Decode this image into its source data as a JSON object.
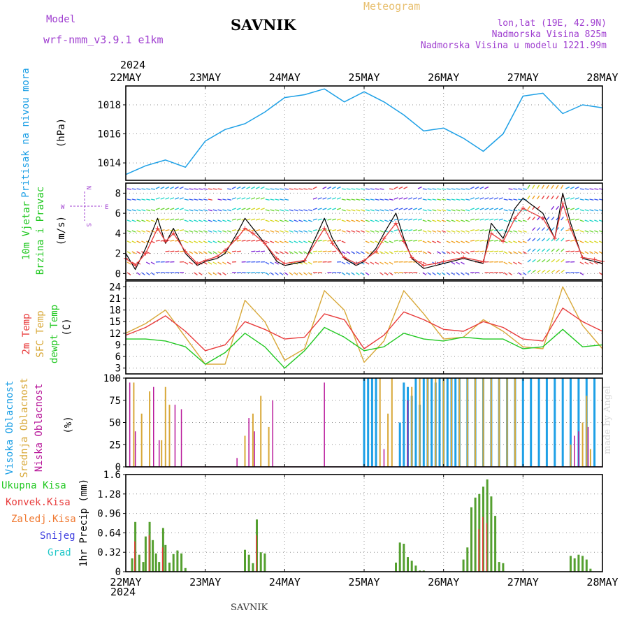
{
  "header": {
    "model_label": "Model",
    "model_value": "wrf-nmm_v3.9.1 e1km",
    "title": "SAVNIK",
    "meteogram": "Meteogram",
    "lonlat": "lon,lat (19E, 42.9N)",
    "altitude": "Nadmorska Visina 825m",
    "model_altitude": "Nadmorska Visina u modelu 1221.99m"
  },
  "footer": {
    "station": "SAVNIK",
    "credit": "made by Angel"
  },
  "colors": {
    "pressure": "#1ea0e6",
    "temp2m": "#e83c3c",
    "sfc_temp": "#d8a838",
    "dewpoint": "#22c822",
    "cloud_high": "#1ea0e6",
    "cloud_mid": "#d8a838",
    "cloud_low": "#b8189a",
    "precip_total": "#55a030",
    "precip_conv": "#e83c3c",
    "compass": "#a040d0",
    "grid": "#909090"
  },
  "time_axis": {
    "year": "2024",
    "labels": [
      "22MAY",
      "23MAY",
      "24MAY",
      "25MAY",
      "26MAY",
      "27MAY",
      "28MAY"
    ]
  },
  "chart_data": [
    {
      "type": "line",
      "panel": "pressure",
      "ylabel_left": "Pritisak na nivou mora",
      "unit": "(hPa)",
      "ylim": [
        1012.8,
        1019.3
      ],
      "yticks": [
        "1014",
        "1016",
        "1018"
      ],
      "series": [
        {
          "name": "Pritisak na nivou mora",
          "x": [
            0,
            0.25,
            0.5,
            0.75,
            1.0,
            1.25,
            1.5,
            1.75,
            2.0,
            2.25,
            2.5,
            2.75,
            3.0,
            3.25,
            3.5,
            3.75,
            4.0,
            4.25,
            4.5,
            4.75,
            5.0,
            5.25,
            5.5,
            5.75,
            6.0
          ],
          "y": [
            1013.2,
            1013.8,
            1014.2,
            1013.7,
            1015.5,
            1016.3,
            1016.7,
            1017.5,
            1018.5,
            1018.7,
            1019.1,
            1018.2,
            1018.9,
            1018.2,
            1017.3,
            1016.2,
            1016.4,
            1015.7,
            1014.8,
            1016.0,
            1018.6,
            1018.8,
            1017.4,
            1018.0,
            1017.8
          ]
        }
      ]
    },
    {
      "type": "line",
      "panel": "wind",
      "ylabel_left": "10m Vjetar",
      "ylabel_left2": "Brzina i Pravac",
      "unit": "(m/s)",
      "compass": {
        "north": "N",
        "south": "S",
        "west": "W",
        "east": "E"
      },
      "ylim": [
        -0.6,
        9.0
      ],
      "yticks": [
        "0",
        "2",
        "4",
        "6",
        "8"
      ],
      "series": [
        {
          "name": "10m Vjetar",
          "x": [
            0,
            0.12,
            0.25,
            0.4,
            0.5,
            0.6,
            0.75,
            0.9,
            1.0,
            1.15,
            1.25,
            1.4,
            1.5,
            1.6,
            1.75,
            1.9,
            2.0,
            2.25,
            2.5,
            2.6,
            2.75,
            2.9,
            3.0,
            3.15,
            3.25,
            3.4,
            3.5,
            3.6,
            3.75,
            3.9,
            4.0,
            4.25,
            4.5,
            4.6,
            4.75,
            4.9,
            5.0,
            5.25,
            5.4,
            5.5,
            5.6,
            5.75,
            5.9,
            6.0
          ],
          "y": [
            2.0,
            0.4,
            2.5,
            5.5,
            3.0,
            4.5,
            2.0,
            0.8,
            1.2,
            1.5,
            2.0,
            4.0,
            5.5,
            4.5,
            3.0,
            1.2,
            0.8,
            1.2,
            5.5,
            3.5,
            1.5,
            0.8,
            1.2,
            2.5,
            4.0,
            6.0,
            3.5,
            1.5,
            0.5,
            0.8,
            1.0,
            1.5,
            1.0,
            5.0,
            3.5,
            6.5,
            7.5,
            6.0,
            3.5,
            8.0,
            5.0,
            1.5,
            1.2,
            1.0
          ]
        },
        {
          "name": "10m Vjetar udari",
          "x": [
            0,
            0.12,
            0.25,
            0.4,
            0.5,
            0.6,
            0.75,
            0.9,
            1.0,
            1.15,
            1.25,
            1.4,
            1.5,
            1.6,
            1.75,
            1.9,
            2.0,
            2.25,
            2.5,
            2.6,
            2.75,
            2.9,
            3.0,
            3.15,
            3.25,
            3.4,
            3.5,
            3.6,
            3.75,
            3.9,
            4.0,
            4.25,
            4.5,
            4.6,
            4.75,
            4.9,
            5.0,
            5.25,
            5.4,
            5.5,
            5.6,
            5.75,
            5.9,
            6.0
          ],
          "y": [
            1.5,
            0.8,
            2.0,
            4.5,
            3.2,
            4.0,
            2.2,
            1.0,
            1.3,
            1.7,
            2.3,
            3.5,
            4.5,
            4.0,
            3.0,
            1.5,
            1.0,
            1.3,
            4.5,
            3.0,
            1.6,
            1.0,
            1.3,
            2.2,
            3.5,
            5.0,
            3.2,
            1.6,
            0.8,
            1.0,
            1.2,
            1.6,
            1.2,
            4.0,
            3.2,
            5.5,
            6.5,
            5.5,
            3.5,
            7.0,
            4.5,
            1.6,
            1.4,
            1.2
          ]
        }
      ]
    },
    {
      "type": "line",
      "panel": "temperature",
      "ylabel_left": "2m Temp",
      "ylabel_left2": "SFC Temp",
      "ylabel_left3": "dewpt Temp",
      "unit": "(C)",
      "ylim": [
        1.5,
        25.5
      ],
      "yticks": [
        "3",
        "6",
        "9",
        "12",
        "15",
        "18",
        "21",
        "24"
      ],
      "series": [
        {
          "name": "2m Temp",
          "x": [
            0,
            0.25,
            0.5,
            0.75,
            1.0,
            1.25,
            1.5,
            1.75,
            2.0,
            2.25,
            2.5,
            2.75,
            3.0,
            3.25,
            3.5,
            3.75,
            4.0,
            4.25,
            4.5,
            4.75,
            5.0,
            5.25,
            5.5,
            5.75,
            6.0
          ],
          "y": [
            11.5,
            13.5,
            16.5,
            12.5,
            7.5,
            9.0,
            15.0,
            13.0,
            10.5,
            11.0,
            17.0,
            15.5,
            8.0,
            11.5,
            17.5,
            15.5,
            13.0,
            12.5,
            15.0,
            13.5,
            10.5,
            10.0,
            18.5,
            15.0,
            12.5
          ]
        },
        {
          "name": "SFC Temp",
          "x": [
            0,
            0.25,
            0.5,
            0.75,
            1.0,
            1.25,
            1.5,
            1.75,
            2.0,
            2.25,
            2.5,
            2.75,
            3.0,
            3.25,
            3.5,
            3.75,
            4.0,
            4.25,
            4.5,
            4.75,
            5.0,
            5.25,
            5.5,
            5.75,
            6.0
          ],
          "y": [
            12.0,
            14.5,
            18.0,
            11.0,
            4.0,
            4.0,
            20.5,
            15.0,
            5.0,
            8.0,
            23.0,
            18.0,
            4.5,
            10.0,
            23.0,
            17.0,
            10.5,
            11.0,
            15.5,
            12.5,
            8.5,
            8.0,
            24.0,
            14.0,
            8.0
          ]
        },
        {
          "name": "dewpt Temp",
          "x": [
            0,
            0.25,
            0.5,
            0.75,
            1.0,
            1.25,
            1.5,
            1.75,
            2.0,
            2.25,
            2.5,
            2.75,
            3.0,
            3.25,
            3.5,
            3.75,
            4.0,
            4.25,
            4.5,
            4.75,
            5.0,
            5.25,
            5.5,
            5.75,
            6.0
          ],
          "y": [
            10.5,
            10.5,
            10.0,
            8.5,
            4.0,
            7.0,
            12.0,
            8.5,
            3.0,
            7.5,
            13.5,
            11.0,
            7.5,
            8.5,
            12.0,
            10.5,
            10.0,
            11.0,
            10.5,
            10.5,
            8.0,
            8.5,
            13.0,
            8.5,
            9.0
          ]
        }
      ]
    },
    {
      "type": "bar",
      "panel": "clouds",
      "ylabel_left": "Visoka Oblacnost",
      "ylabel_left2": "Srednja Oblacnost",
      "ylabel_left3": "Niska Oblacnost",
      "unit": "(%)",
      "ylim": [
        0,
        100
      ],
      "yticks": [
        "0",
        "25",
        "50",
        "75",
        "100"
      ],
      "series": [
        {
          "name": "Visoka Oblacnost",
          "x": [
            3.0,
            3.05,
            3.1,
            3.15,
            3.45,
            3.5,
            3.55,
            3.6,
            3.65,
            3.7,
            3.75,
            3.8,
            3.85,
            3.9,
            3.95,
            4.0,
            4.05,
            4.1,
            4.15,
            4.2,
            4.3,
            4.4,
            4.5,
            4.6,
            4.7,
            4.8,
            4.9,
            5.0,
            5.1,
            5.2,
            5.3,
            5.4,
            5.5,
            5.6,
            5.7,
            5.8,
            5.9
          ],
          "y": [
            100,
            100,
            100,
            100,
            50,
            95,
            90,
            80,
            100,
            70,
            100,
            100,
            100,
            95,
            100,
            100,
            100,
            100,
            100,
            100,
            100,
            100,
            100,
            100,
            100,
            100,
            100,
            100,
            100,
            100,
            100,
            100,
            100,
            100,
            100,
            100,
            100
          ]
        },
        {
          "name": "Srednja Oblacnost",
          "x": [
            0.1,
            0.2,
            0.3,
            0.45,
            0.5,
            0.55,
            1.5,
            1.6,
            1.7,
            1.8,
            3.2,
            3.3,
            3.35,
            3.6,
            3.7,
            3.8,
            3.9,
            4.0,
            4.1,
            4.2,
            4.3,
            4.4,
            4.5,
            4.6,
            4.7,
            4.8,
            4.9,
            5.6,
            5.75,
            5.8,
            5.85
          ],
          "y": [
            95,
            60,
            85,
            30,
            90,
            70,
            35,
            60,
            80,
            45,
            100,
            60,
            100,
            90,
            100,
            100,
            100,
            100,
            100,
            100,
            100,
            100,
            100,
            100,
            100,
            100,
            100,
            25,
            50,
            80,
            20
          ]
        },
        {
          "name": "Niska Oblacnost",
          "x": [
            0.05,
            0.12,
            0.35,
            0.42,
            0.62,
            0.7,
            1.4,
            1.55,
            1.62,
            1.85,
            2.5,
            3.25,
            3.55,
            5.65,
            5.7,
            5.82
          ],
          "y": [
            95,
            40,
            90,
            30,
            70,
            65,
            10,
            55,
            40,
            75,
            95,
            20,
            75,
            35,
            40,
            45
          ]
        }
      ]
    },
    {
      "type": "bar",
      "panel": "precip",
      "ylabel_left": "1hr Precip",
      "unit": "(mm)",
      "legend": [
        "Ukupna Kisa",
        "Konvek.Kisa",
        "Zaledj.Kisa",
        "Snijeg",
        "Grad"
      ],
      "ylim": [
        0,
        1.6
      ],
      "yticks": [
        "0",
        "0.32",
        "0.64",
        "0.96",
        "1.28",
        "1.6"
      ],
      "series": [
        {
          "name": "Ukupna Kisa",
          "x": [
            0.08,
            0.12,
            0.17,
            0.22,
            0.25,
            0.3,
            0.34,
            0.38,
            0.42,
            0.47,
            0.5,
            0.55,
            0.6,
            0.65,
            0.7,
            0.75,
            1.5,
            1.55,
            1.6,
            1.65,
            1.7,
            1.75,
            3.4,
            3.45,
            3.5,
            3.55,
            3.6,
            3.65,
            3.7,
            3.75,
            4.25,
            4.3,
            4.35,
            4.4,
            4.45,
            4.5,
            4.55,
            4.6,
            4.65,
            4.7,
            4.75,
            5.6,
            5.65,
            5.7,
            5.75,
            5.8,
            5.85
          ],
          "y": [
            0.22,
            0.82,
            0.28,
            0.16,
            0.58,
            0.82,
            0.52,
            0.3,
            0.16,
            0.72,
            0.44,
            0.15,
            0.29,
            0.35,
            0.3,
            0.06,
            0.36,
            0.28,
            0.14,
            0.86,
            0.32,
            0.3,
            0.15,
            0.48,
            0.46,
            0.24,
            0.18,
            0.1,
            0.02,
            0.02,
            0.2,
            0.4,
            1.06,
            1.22,
            1.28,
            1.4,
            1.52,
            1.24,
            0.92,
            0.16,
            0.14,
            0.26,
            0.22,
            0.28,
            0.26,
            0.2,
            0.05
          ]
        },
        {
          "name": "Konvek.Kisa",
          "x": [
            0.12,
            0.3,
            0.47,
            1.65,
            4.45,
            4.5,
            4.55
          ],
          "y": [
            0.5,
            0.6,
            0.4,
            0.6,
            0.7,
            0.9,
            0.8
          ]
        }
      ]
    }
  ]
}
